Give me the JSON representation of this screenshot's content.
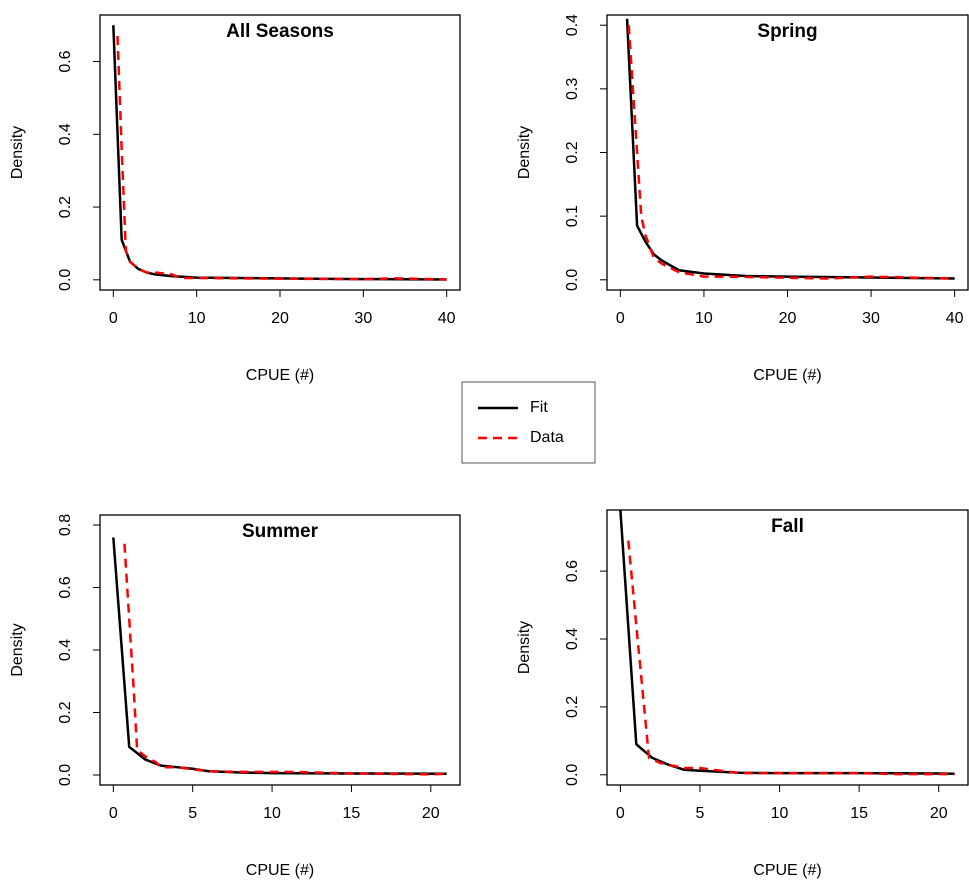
{
  "chart_data": [
    {
      "type": "line",
      "title": "All Seasons",
      "xlabel": "CPUE (#)",
      "ylabel": "Density",
      "xlim": [
        -1.6,
        41.6
      ],
      "ylim": [
        -0.028,
        0.728
      ],
      "xticks": [
        0,
        10,
        20,
        30,
        40
      ],
      "yticks": [
        {
          "value": 0,
          "label": "0.0"
        },
        0.2,
        0.4,
        0.6
      ],
      "series": [
        {
          "name": "Fit",
          "color": "#000000",
          "dash": false,
          "x": [
            0,
            1,
            1.5,
            2,
            3,
            4,
            5,
            7,
            10,
            15,
            20,
            24,
            30,
            40
          ],
          "values": [
            0.7,
            0.11,
            0.08,
            0.05,
            0.03,
            0.02,
            0.015,
            0.01,
            0.006,
            0.005,
            0.004,
            0.003,
            0.002,
            0.001
          ]
        },
        {
          "name": "Data",
          "color": "#ff0000",
          "dash": true,
          "x": [
            0.5,
            1,
            1.5,
            2,
            3,
            4,
            5,
            7,
            8,
            10,
            20,
            30,
            34,
            40
          ],
          "values": [
            0.67,
            0.36,
            0.08,
            0.05,
            0.03,
            0.02,
            0.02,
            0.015,
            0.005,
            0.005,
            0.003,
            0.002,
            0.004,
            0.001
          ]
        }
      ]
    },
    {
      "type": "line",
      "title": "Spring",
      "xlabel": "CPUE (#)",
      "ylabel": "Density",
      "xlim": [
        -1.6,
        41.6
      ],
      "ylim": [
        -0.016,
        0.416
      ],
      "xticks": [
        0,
        10,
        20,
        30,
        40
      ],
      "yticks": [
        {
          "value": 0,
          "label": "0.0"
        },
        0.1,
        0.2,
        0.3,
        0.4
      ],
      "series": [
        {
          "name": "Fit",
          "color": "#000000",
          "dash": false,
          "x": [
            0.8,
            2,
            3,
            4,
            5,
            7,
            10,
            15,
            20,
            27,
            40
          ],
          "values": [
            0.41,
            0.085,
            0.06,
            0.04,
            0.03,
            0.015,
            0.01,
            0.006,
            0.005,
            0.004,
            0.002
          ]
        },
        {
          "name": "Data",
          "color": "#ff0000",
          "dash": true,
          "x": [
            1,
            2,
            2.5,
            3,
            4,
            5,
            7,
            10,
            13,
            25,
            30,
            40
          ],
          "values": [
            0.4,
            0.2,
            0.1,
            0.07,
            0.035,
            0.025,
            0.012,
            0.005,
            0.005,
            0.002,
            0.005,
            0.002
          ]
        }
      ]
    },
    {
      "type": "line",
      "title": "Summer",
      "xlabel": "CPUE (#)",
      "ylabel": "Density",
      "xlim": [
        -0.84,
        21.84
      ],
      "ylim": [
        -0.032,
        0.832
      ],
      "xticks": [
        0,
        5,
        10,
        15,
        20
      ],
      "yticks": [
        {
          "value": 0,
          "label": "0.0"
        },
        0.2,
        0.4,
        0.6,
        0.8
      ],
      "series": [
        {
          "name": "Fit",
          "color": "#000000",
          "dash": false,
          "x": [
            0,
            1,
            1.5,
            2,
            3,
            4,
            5,
            6,
            8,
            10,
            15,
            21
          ],
          "values": [
            0.76,
            0.09,
            0.07,
            0.05,
            0.03,
            0.025,
            0.02,
            0.012,
            0.008,
            0.006,
            0.005,
            0.004
          ]
        },
        {
          "name": "Data",
          "color": "#ff0000",
          "dash": true,
          "x": [
            0.7,
            1.3,
            1.5,
            2,
            2.7,
            3,
            4,
            6,
            8,
            11,
            15,
            20,
            21
          ],
          "values": [
            0.74,
            0.26,
            0.08,
            0.06,
            0.04,
            0.025,
            0.025,
            0.012,
            0.01,
            0.01,
            0.005,
            0.002,
            0.004
          ]
        }
      ]
    },
    {
      "type": "line",
      "title": "Fall",
      "xlabel": "CPUE (#)",
      "ylabel": "Density",
      "xlim": [
        -0.84,
        21.84
      ],
      "ylim": [
        -0.03,
        0.78
      ],
      "xticks": [
        0,
        5,
        10,
        15,
        20
      ],
      "yticks": [
        {
          "value": 0,
          "label": "0.0"
        },
        0.2,
        0.4,
        0.6
      ],
      "series": [
        {
          "name": "Fit",
          "color": "#000000",
          "dash": false,
          "x": [
            0,
            1,
            1.5,
            2,
            3,
            4,
            5,
            7.5,
            10,
            15,
            20,
            21
          ],
          "values": [
            0.78,
            0.09,
            0.07,
            0.05,
            0.03,
            0.015,
            0.012,
            0.006,
            0.005,
            0.005,
            0.004,
            0.003
          ]
        },
        {
          "name": "Data",
          "color": "#ff0000",
          "dash": true,
          "x": [
            0.5,
            1,
            1.8,
            2.5,
            3,
            4,
            5,
            7.5,
            10,
            15,
            17.5,
            21
          ],
          "values": [
            0.69,
            0.44,
            0.05,
            0.035,
            0.03,
            0.02,
            0.02,
            0.005,
            0.005,
            0.005,
            0.002,
            0.002
          ]
        }
      ]
    }
  ]
}
